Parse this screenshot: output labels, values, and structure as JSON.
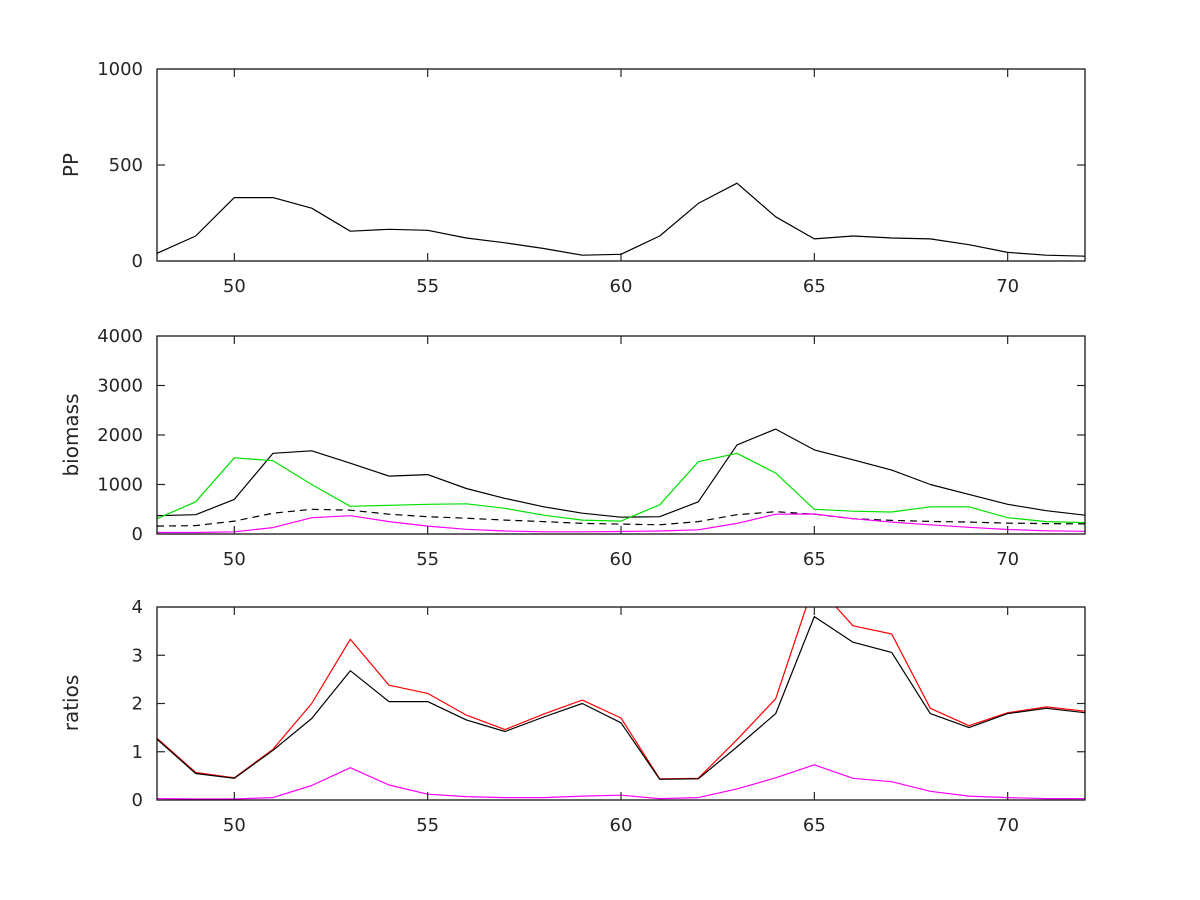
{
  "chart_data": [
    {
      "type": "line",
      "title": "",
      "xlabel": "",
      "ylabel": "PP",
      "xlim": [
        48,
        72
      ],
      "ylim": [
        0,
        1000
      ],
      "xticks": [
        50,
        55,
        60,
        65,
        70
      ],
      "yticks": [
        0,
        500,
        1000
      ],
      "grid": false,
      "legend": "none",
      "x": [
        48,
        49,
        50,
        51,
        52,
        53,
        54,
        55,
        56,
        57,
        58,
        59,
        60,
        61,
        62,
        63,
        64,
        65,
        66,
        67,
        68,
        69,
        70,
        71,
        72
      ],
      "series": [
        {
          "name": "pp-black-line",
          "color": "#000000",
          "dash": "solid",
          "values": [
            40,
            130,
            330,
            330,
            275,
            155,
            165,
            160,
            120,
            95,
            65,
            30,
            35,
            130,
            300,
            405,
            230,
            115,
            130,
            120,
            115,
            85,
            45,
            30,
            25
          ]
        }
      ]
    },
    {
      "type": "line",
      "title": "",
      "xlabel": "",
      "ylabel": "biomass",
      "xlim": [
        48,
        72
      ],
      "ylim": [
        0,
        4000
      ],
      "xticks": [
        50,
        55,
        60,
        65,
        70
      ],
      "yticks": [
        0,
        1000,
        2000,
        3000,
        4000
      ],
      "grid": false,
      "legend": "none",
      "x": [
        48,
        49,
        50,
        51,
        52,
        53,
        54,
        55,
        56,
        57,
        58,
        59,
        60,
        61,
        62,
        63,
        64,
        65,
        66,
        67,
        68,
        69,
        70,
        71,
        72
      ],
      "series": [
        {
          "name": "biomass-black-solid-line",
          "color": "#000000",
          "dash": "solid",
          "values": [
            370,
            390,
            700,
            1630,
            1680,
            1430,
            1170,
            1200,
            920,
            720,
            550,
            420,
            340,
            350,
            650,
            1800,
            2120,
            1700,
            1500,
            1290,
            1000,
            800,
            600,
            470,
            380
          ]
        },
        {
          "name": "biomass-green-line",
          "color": "#00e000",
          "dash": "solid",
          "values": [
            310,
            650,
            1540,
            1480,
            1000,
            560,
            580,
            600,
            610,
            520,
            380,
            280,
            260,
            590,
            1460,
            1630,
            1230,
            500,
            460,
            445,
            550,
            550,
            330,
            250,
            230
          ]
        },
        {
          "name": "biomass-black-dashed-line",
          "color": "#000000",
          "dash": "dashed",
          "values": [
            160,
            170,
            260,
            420,
            500,
            480,
            400,
            350,
            320,
            280,
            250,
            215,
            200,
            185,
            250,
            390,
            450,
            400,
            310,
            275,
            255,
            240,
            220,
            210,
            205
          ]
        },
        {
          "name": "biomass-magenta-line",
          "color": "#ff00ff",
          "dash": "solid",
          "values": [
            30,
            30,
            45,
            130,
            330,
            370,
            250,
            160,
            95,
            60,
            45,
            45,
            50,
            60,
            85,
            215,
            400,
            405,
            310,
            240,
            185,
            135,
            90,
            65,
            55
          ]
        }
      ]
    },
    {
      "type": "line",
      "title": "",
      "xlabel": "",
      "ylabel": "ratios",
      "xlim": [
        48,
        72
      ],
      "ylim": [
        0,
        4
      ],
      "xticks": [
        50,
        55,
        60,
        65,
        70
      ],
      "yticks": [
        0,
        1,
        2,
        3,
        4
      ],
      "grid": false,
      "legend": "none",
      "x": [
        48,
        49,
        50,
        51,
        52,
        53,
        54,
        55,
        56,
        57,
        58,
        59,
        60,
        61,
        62,
        63,
        64,
        65,
        66,
        67,
        68,
        69,
        70,
        71,
        72
      ],
      "series": [
        {
          "name": "ratios-red-line",
          "color": "#ff0000",
          "dash": "solid",
          "values": [
            1.28,
            0.57,
            0.46,
            1.05,
            2.0,
            3.33,
            2.38,
            2.21,
            1.76,
            1.46,
            1.78,
            2.07,
            1.7,
            0.44,
            0.45,
            1.25,
            2.1,
            4.5,
            3.61,
            3.44,
            1.9,
            1.54,
            1.81,
            1.93,
            1.84
          ]
        },
        {
          "name": "ratios-black-line",
          "color": "#000000",
          "dash": "solid",
          "values": [
            1.26,
            0.55,
            0.45,
            1.03,
            1.69,
            2.68,
            2.04,
            2.04,
            1.66,
            1.42,
            1.72,
            2.0,
            1.6,
            0.43,
            0.44,
            1.1,
            1.79,
            3.8,
            3.27,
            3.06,
            1.79,
            1.5,
            1.79,
            1.9,
            1.81
          ]
        },
        {
          "name": "ratios-magenta-line",
          "color": "#ff00ff",
          "dash": "solid",
          "values": [
            0.03,
            0.02,
            0.02,
            0.05,
            0.3,
            0.67,
            0.31,
            0.12,
            0.07,
            0.05,
            0.05,
            0.08,
            0.1,
            0.03,
            0.05,
            0.23,
            0.46,
            0.73,
            0.45,
            0.38,
            0.18,
            0.08,
            0.05,
            0.03,
            0.03
          ]
        }
      ]
    }
  ],
  "axis": {
    "tick_color": "#262626",
    "box_color": "#000000",
    "tick_label_color": "#262626"
  }
}
